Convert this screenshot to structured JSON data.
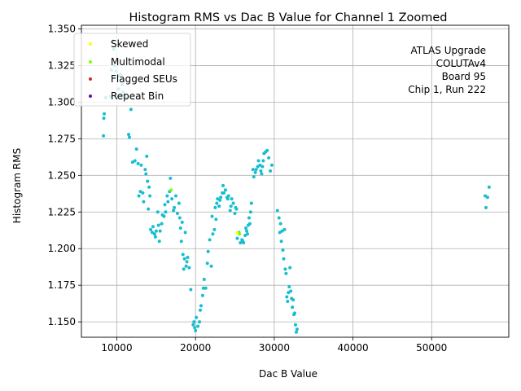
{
  "chart_data": {
    "type": "scatter",
    "title": "Histogram RMS vs Dac B Value for Channel 1 Zoomed",
    "xlabel": "Dac B Value",
    "ylabel": "Histogram RMS",
    "xlim": [
      5500,
      59800
    ],
    "ylim": [
      1.1395,
      1.3525
    ],
    "xticks": [
      10000,
      20000,
      30000,
      40000,
      50000
    ],
    "xtick_labels": [
      "10000",
      "20000",
      "30000",
      "40000",
      "50000"
    ],
    "yticks": [
      1.15,
      1.175,
      1.2,
      1.225,
      1.25,
      1.275,
      1.3,
      1.325,
      1.35
    ],
    "ytick_labels": [
      "1.150",
      "1.175",
      "1.200",
      "1.225",
      "1.250",
      "1.275",
      "1.300",
      "1.325",
      "1.350"
    ],
    "grid": true,
    "legend_position": "top-left",
    "annotation_lines": [
      "ATLAS Upgrade",
      "COLUTAv4",
      "Board 95",
      "Chip 1, Run 222"
    ],
    "colors": {
      "main": "#17becf",
      "skewed": "#ffff00",
      "multimodal": "#7fff00",
      "flagged": "#d62728",
      "repeat": "#6a0dad"
    },
    "series": [
      {
        "name": "",
        "color_key": "main",
        "points": [
          [
            8300,
            1.277
          ],
          [
            8350,
            1.289
          ],
          [
            8400,
            1.292
          ],
          [
            8600,
            1.303
          ],
          [
            9200,
            1.304
          ],
          [
            9300,
            1.322
          ],
          [
            9500,
            1.342
          ],
          [
            9600,
            1.336
          ],
          [
            9700,
            1.325
          ],
          [
            9800,
            1.317
          ],
          [
            9900,
            1.321
          ],
          [
            10000,
            1.303
          ],
          [
            10200,
            1.309
          ],
          [
            10300,
            1.318
          ],
          [
            10500,
            1.319
          ],
          [
            10600,
            1.304
          ],
          [
            10700,
            1.312
          ],
          [
            10800,
            1.307
          ],
          [
            11000,
            1.305
          ],
          [
            11200,
            1.303
          ],
          [
            11500,
            1.278
          ],
          [
            11600,
            1.276
          ],
          [
            11800,
            1.295
          ],
          [
            12000,
            1.259
          ],
          [
            12300,
            1.26
          ],
          [
            12500,
            1.268
          ],
          [
            12700,
            1.258
          ],
          [
            12800,
            1.236
          ],
          [
            13000,
            1.239
          ],
          [
            13100,
            1.257
          ],
          [
            13300,
            1.238
          ],
          [
            13400,
            1.232
          ],
          [
            13600,
            1.254
          ],
          [
            13700,
            1.251
          ],
          [
            13800,
            1.263
          ],
          [
            13900,
            1.246
          ],
          [
            14000,
            1.227
          ],
          [
            14100,
            1.242
          ],
          [
            14200,
            1.236
          ],
          [
            14300,
            1.213
          ],
          [
            14500,
            1.211
          ],
          [
            14600,
            1.215
          ],
          [
            14800,
            1.21
          ],
          [
            14900,
            1.208
          ],
          [
            15000,
            1.212
          ],
          [
            15200,
            1.225
          ],
          [
            15300,
            1.216
          ],
          [
            15400,
            1.205
          ],
          [
            15500,
            1.212
          ],
          [
            15700,
            1.217
          ],
          [
            15800,
            1.223
          ],
          [
            16000,
            1.222
          ],
          [
            16100,
            1.23
          ],
          [
            16200,
            1.225
          ],
          [
            16400,
            1.236
          ],
          [
            16500,
            1.232
          ],
          [
            16700,
            1.239
          ],
          [
            16800,
            1.248
          ],
          [
            17000,
            1.234
          ],
          [
            17200,
            1.226
          ],
          [
            17300,
            1.228
          ],
          [
            17500,
            1.236
          ],
          [
            17700,
            1.224
          ],
          [
            17900,
            1.231
          ],
          [
            18000,
            1.221
          ],
          [
            18100,
            1.214
          ],
          [
            18200,
            1.205
          ],
          [
            18300,
            1.218
          ],
          [
            18400,
            1.196
          ],
          [
            18500,
            1.186
          ],
          [
            18600,
            1.193
          ],
          [
            18700,
            1.211
          ],
          [
            18800,
            1.188
          ],
          [
            18900,
            1.191
          ],
          [
            19000,
            1.194
          ],
          [
            19200,
            1.187
          ],
          [
            19400,
            1.172
          ],
          [
            19700,
            1.148
          ],
          [
            19800,
            1.15
          ],
          [
            19900,
            1.146
          ],
          [
            20000,
            1.144
          ],
          [
            20100,
            1.153
          ],
          [
            20300,
            1.147
          ],
          [
            20500,
            1.15
          ],
          [
            20600,
            1.158
          ],
          [
            20700,
            1.161
          ],
          [
            20900,
            1.168
          ],
          [
            21000,
            1.173
          ],
          [
            21100,
            1.179
          ],
          [
            21300,
            1.173
          ],
          [
            21500,
            1.19
          ],
          [
            21600,
            1.198
          ],
          [
            21800,
            1.206
          ],
          [
            22000,
            1.188
          ],
          [
            22100,
            1.222
          ],
          [
            22200,
            1.21
          ],
          [
            22400,
            1.213
          ],
          [
            22500,
            1.228
          ],
          [
            22600,
            1.22
          ],
          [
            22700,
            1.231
          ],
          [
            22800,
            1.234
          ],
          [
            23000,
            1.229
          ],
          [
            23100,
            1.233
          ],
          [
            23200,
            1.235
          ],
          [
            23400,
            1.238
          ],
          [
            23500,
            1.243
          ],
          [
            23600,
            1.238
          ],
          [
            23800,
            1.24
          ],
          [
            24000,
            1.235
          ],
          [
            24100,
            1.234
          ],
          [
            24200,
            1.236
          ],
          [
            24400,
            1.226
          ],
          [
            24500,
            1.229
          ],
          [
            24600,
            1.234
          ],
          [
            24800,
            1.231
          ],
          [
            25000,
            1.224
          ],
          [
            25100,
            1.228
          ],
          [
            25200,
            1.227
          ],
          [
            25300,
            1.207
          ],
          [
            25500,
            1.211
          ],
          [
            25700,
            1.204
          ],
          [
            25900,
            1.206
          ],
          [
            26000,
            1.205
          ],
          [
            26100,
            1.204
          ],
          [
            26300,
            1.209
          ],
          [
            26400,
            1.214
          ],
          [
            26500,
            1.212
          ],
          [
            26600,
            1.21
          ],
          [
            26700,
            1.216
          ],
          [
            26800,
            1.221
          ],
          [
            26900,
            1.217
          ],
          [
            27000,
            1.225
          ],
          [
            27100,
            1.231
          ],
          [
            27300,
            1.254
          ],
          [
            27400,
            1.249
          ],
          [
            27600,
            1.252
          ],
          [
            27700,
            1.254
          ],
          [
            27900,
            1.256
          ],
          [
            28000,
            1.26
          ],
          [
            28200,
            1.257
          ],
          [
            28300,
            1.253
          ],
          [
            28400,
            1.251
          ],
          [
            28500,
            1.256
          ],
          [
            28600,
            1.26
          ],
          [
            28700,
            1.265
          ],
          [
            28900,
            1.266
          ],
          [
            29100,
            1.267
          ],
          [
            29300,
            1.262
          ],
          [
            29500,
            1.253
          ],
          [
            29700,
            1.257
          ],
          [
            30400,
            1.226
          ],
          [
            30600,
            1.221
          ],
          [
            30700,
            1.211
          ],
          [
            30800,
            1.217
          ],
          [
            30900,
            1.205
          ],
          [
            31000,
            1.212
          ],
          [
            31100,
            1.199
          ],
          [
            31200,
            1.193
          ],
          [
            31300,
            1.213
          ],
          [
            31400,
            1.186
          ],
          [
            31500,
            1.183
          ],
          [
            31600,
            1.167
          ],
          [
            31700,
            1.164
          ],
          [
            31800,
            1.17
          ],
          [
            31900,
            1.174
          ],
          [
            32000,
            1.187
          ],
          [
            32100,
            1.171
          ],
          [
            32200,
            1.166
          ],
          [
            32300,
            1.16
          ],
          [
            32400,
            1.165
          ],
          [
            32500,
            1.155
          ],
          [
            32600,
            1.156
          ],
          [
            32700,
            1.148
          ],
          [
            32800,
            1.143
          ],
          [
            32900,
            1.145
          ],
          [
            56800,
            1.236
          ],
          [
            56900,
            1.228
          ],
          [
            57100,
            1.235
          ],
          [
            57300,
            1.242
          ]
        ]
      },
      {
        "name": "Skewed",
        "color_key": "skewed",
        "points": [
          [
            25300,
            1.211
          ]
        ]
      },
      {
        "name": "Multimodal",
        "color_key": "multimodal",
        "points": [
          [
            16900,
            1.24
          ],
          [
            25600,
            1.21
          ]
        ]
      },
      {
        "name": "Flagged SEUs",
        "color_key": "flagged",
        "points": []
      },
      {
        "name": "Repeat Bin",
        "color_key": "repeat",
        "points": []
      }
    ]
  }
}
